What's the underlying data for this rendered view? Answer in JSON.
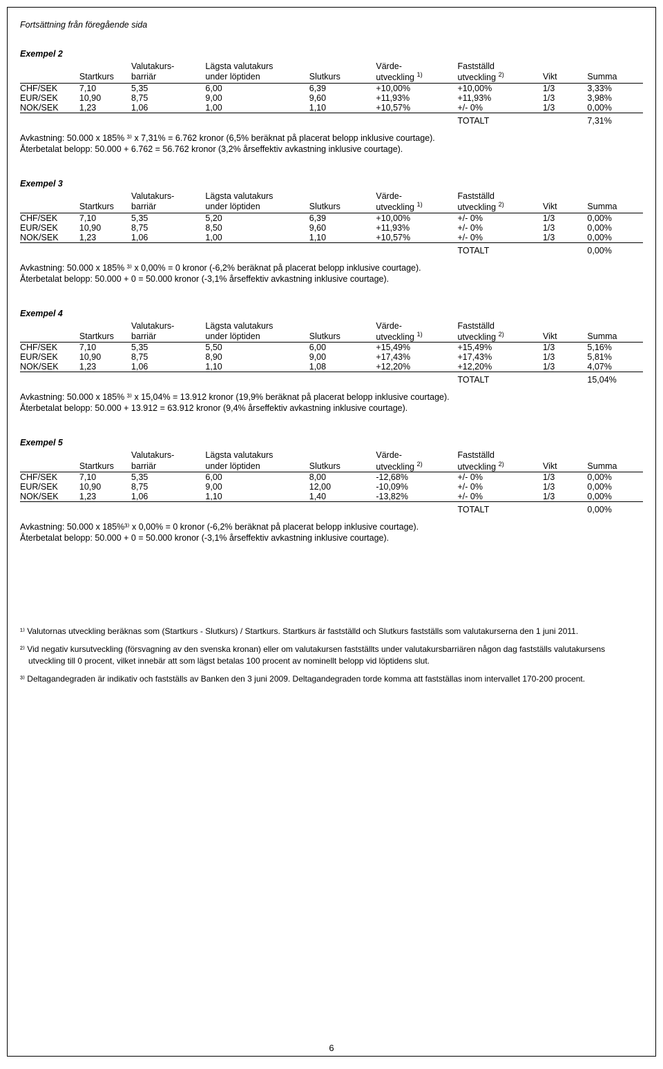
{
  "continuation_note": "Fortsättning från föregående sida",
  "headers": {
    "pair": "",
    "startkurs": "Startkurs",
    "barrier_l1": "Valutakurs-",
    "barrier_l2": "barriär",
    "lowest_l1": "Lägsta valutakurs",
    "lowest_l2": "under löptiden",
    "slutkurs": "Slutkurs",
    "varde_l1": "Värde-",
    "varde_l2_sup1": "utveckling ",
    "varde_sup1": "1)",
    "varde_sup2": "2)",
    "fast_l1": "Fastställd",
    "fast_l2_sup2": "utveckling ",
    "vikt": "Vikt",
    "summa": "Summa",
    "totalt_label": "TOTALT"
  },
  "examples": [
    {
      "title": "Exempel 2",
      "varde_sup": "1)",
      "rows": [
        {
          "pair": "CHF/SEK",
          "start": "7,10",
          "barr": "5,35",
          "low": "6,00",
          "slut": "6,39",
          "varde": "+10,00%",
          "fast": "+10,00%",
          "vikt": "1/3",
          "sum": "3,33%"
        },
        {
          "pair": "EUR/SEK",
          "start": "10,90",
          "barr": "8,75",
          "low": "9,00",
          "slut": "9,60",
          "varde": "+11,93%",
          "fast": "+11,93%",
          "vikt": "1/3",
          "sum": "3,98%"
        },
        {
          "pair": "NOK/SEK",
          "start": "1,23",
          "barr": "1,06",
          "low": "1,00",
          "slut": "1,10",
          "varde": "+10,57%",
          "fast": "+/-  0%",
          "vikt": "1/3",
          "sum": "0,00%"
        }
      ],
      "total": "7,31%",
      "calc1": "Avkastning: 50.000 x 185% ³⁾ x 7,31% = 6.762 kronor (6,5% beräknat på placerat belopp inklusive courtage).",
      "calc2": "Återbetalat belopp: 50.000 + 6.762 = 56.762 kronor (3,2% årseffektiv avkastning inklusive courtage)."
    },
    {
      "title": "Exempel 3",
      "varde_sup": "1)",
      "rows": [
        {
          "pair": "CHF/SEK",
          "start": "7,10",
          "barr": "5,35",
          "low": "5,20",
          "slut": "6,39",
          "varde": "+10,00%",
          "fast": "+/-  0%",
          "vikt": "1/3",
          "sum": "0,00%"
        },
        {
          "pair": "EUR/SEK",
          "start": "10,90",
          "barr": "8,75",
          "low": "8,50",
          "slut": "9,60",
          "varde": "+11,93%",
          "fast": "+/-  0%",
          "vikt": "1/3",
          "sum": "0,00%"
        },
        {
          "pair": "NOK/SEK",
          "start": "1,23",
          "barr": "1,06",
          "low": "1,00",
          "slut": "1,10",
          "varde": "+10,57%",
          "fast": "+/-  0%",
          "vikt": "1/3",
          "sum": "0,00%"
        }
      ],
      "total": "0,00%",
      "calc1": "Avkastning: 50.000 x 185% ³⁾ x 0,00% = 0 kronor (-6,2% beräknat på placerat belopp inklusive courtage).",
      "calc2": "Återbetalat belopp: 50.000 + 0 = 50.000 kronor (-3,1% årseffektiv avkastning inklusive courtage)."
    },
    {
      "title": "Exempel 4",
      "varde_sup": "1)",
      "rows": [
        {
          "pair": "CHF/SEK",
          "start": "7,10",
          "barr": "5,35",
          "low": "5,50",
          "slut": "6,00",
          "varde": "+15,49%",
          "fast": "+15,49%",
          "vikt": "1/3",
          "sum": "5,16%"
        },
        {
          "pair": "EUR/SEK",
          "start": "10,90",
          "barr": "8,75",
          "low": "8,90",
          "slut": "9,00",
          "varde": "+17,43%",
          "fast": "+17,43%",
          "vikt": "1/3",
          "sum": "5,81%"
        },
        {
          "pair": "NOK/SEK",
          "start": "1,23",
          "barr": "1,06",
          "low": "1,10",
          "slut": "1,08",
          "varde": "+12,20%",
          "fast": "+12,20%",
          "vikt": "1/3",
          "sum": "4,07%"
        }
      ],
      "total": "15,04%",
      "calc1": "Avkastning: 50.000 x 185% ³⁾ x 15,04% = 13.912 kronor (19,9% beräknat på placerat belopp inklusive courtage).",
      "calc2": "Återbetalat belopp: 50.000 + 13.912 = 63.912 kronor (9,4% årseffektiv avkastning inklusive courtage)."
    },
    {
      "title": "Exempel 5",
      "varde_sup": "2)",
      "rows": [
        {
          "pair": "CHF/SEK",
          "start": "7,10",
          "barr": "5,35",
          "low": "6,00",
          "slut": "8,00",
          "varde": "-12,68%",
          "fast": "+/-  0%",
          "vikt": "1/3",
          "sum": "0,00%"
        },
        {
          "pair": "EUR/SEK",
          "start": "10,90",
          "barr": "8,75",
          "low": "9,00",
          "slut": "12,00",
          "varde": "-10,09%",
          "fast": "+/-  0%",
          "vikt": "1/3",
          "sum": "0,00%"
        },
        {
          "pair": "NOK/SEK",
          "start": "1,23",
          "barr": "1,06",
          "low": "1,10",
          "slut": "1,40",
          "varde": "-13,82%",
          "fast": "+/-  0%",
          "vikt": "1/3",
          "sum": "0,00%"
        }
      ],
      "total": "0,00%",
      "calc1": "Avkastning: 50.000 x 185%³⁾ x 0,00% = 0 kronor (-6,2% beräknat på placerat belopp inklusive courtage).",
      "calc2": "Återbetalat belopp: 50.000 + 0 = 50.000 kronor (-3,1% årseffektiv avkastning inklusive courtage)."
    }
  ],
  "footnotes": {
    "f1": "¹⁾ Valutornas utveckling beräknas som (Startkurs - Slutkurs) / Startkurs. Startkurs är fastställd och Slutkurs fastställs som valutakurserna den 1 juni 2011.",
    "f2": "²⁾ Vid negativ kursutveckling (försvagning av den svenska kronan) eller om valutakursen fastställts under valutakursbarriären någon dag fastställs valutakursens utveckling till 0 procent, vilket innebär att som lägst betalas 100 procent av nominellt belopp vid löptidens slut.",
    "f3": "³⁾ Deltagandegraden är indikativ och fastställs av Banken den 3 juni 2009. Deltagandegraden torde komma att fastställas inom intervallet 170-200 procent."
  },
  "page_number": "6"
}
